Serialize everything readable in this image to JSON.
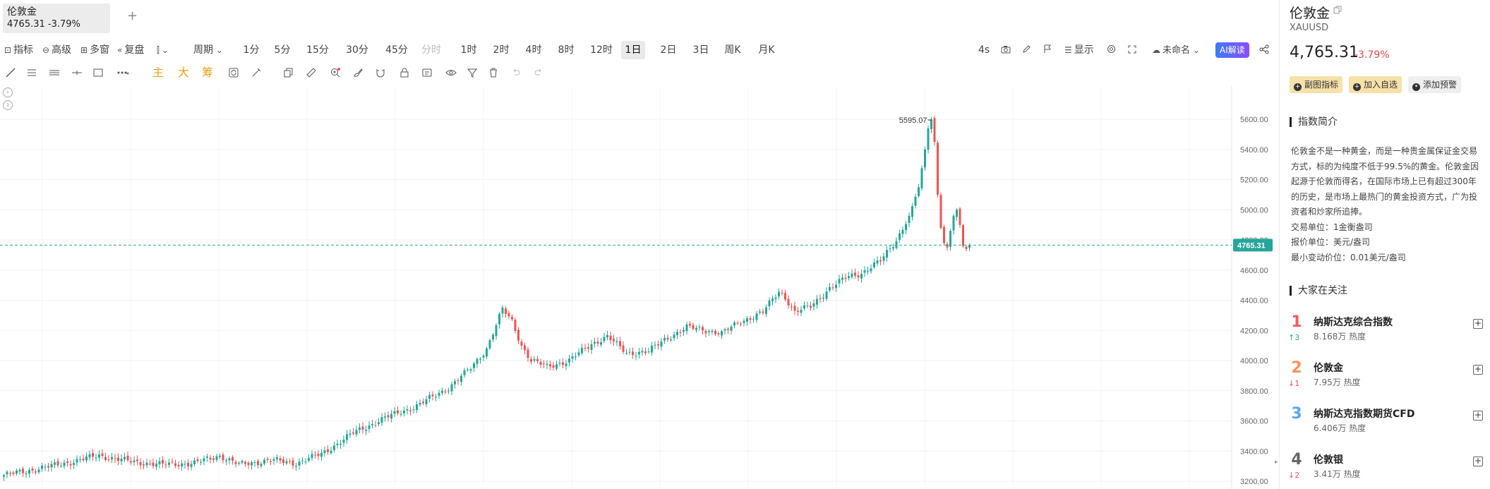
{
  "tab": {
    "name": "伦敦金",
    "quote": "4765.31 -3.79%",
    "add": "+"
  },
  "toolbar": {
    "indicators": "指标",
    "advanced": "高级",
    "multi_window": "多窗",
    "replay": "复盘",
    "chart_type_icon": "candlestick-type-icon",
    "period": "周期",
    "periods": [
      "1分",
      "5分",
      "15分",
      "30分",
      "45分",
      "分时",
      "1时",
      "2时",
      "4时",
      "8时",
      "12时",
      "1日",
      "2日",
      "3日",
      "周K",
      "月K"
    ],
    "active_period": "1日",
    "disabled_period": "分时",
    "refresh_interval": "4s",
    "display": "显示",
    "layout_name": "未命名",
    "ai_button": "AI解读"
  },
  "drawing_tools": {
    "main": "主",
    "big": "大",
    "chips": "筹"
  },
  "chart": {
    "last_price_label": "4765.31",
    "high_label": "5595.07",
    "y_ticks": [
      "5600.00",
      "5400.00",
      "5200.00",
      "5000.00",
      "4800.00",
      "4600.00",
      "4400.00",
      "4200.00",
      "4000.00",
      "3800.00",
      "3600.00",
      "3400.00",
      "3200.00"
    ],
    "up_color": "#26a69a",
    "down_color": "#ef5350",
    "last_line_color": "#26a69a"
  },
  "chart_data": {
    "type": "candlestick",
    "instrument": "XAUUSD",
    "interval": "1日",
    "ylim": [
      3150,
      5700
    ],
    "y_ticks": [
      3200,
      3400,
      3600,
      3800,
      4000,
      4200,
      4400,
      4600,
      4800,
      5000,
      5200,
      5400,
      5600
    ],
    "last_price": 4765.31,
    "high_marker": 5595.07,
    "trend_close_points": [
      [
        0,
        3240
      ],
      [
        15,
        3300
      ],
      [
        30,
        3370
      ],
      [
        40,
        3330
      ],
      [
        50,
        3310
      ],
      [
        60,
        3320
      ],
      [
        68,
        3370
      ],
      [
        74,
        3310
      ],
      [
        84,
        3340
      ],
      [
        92,
        3320
      ],
      [
        100,
        3380
      ],
      [
        110,
        3520
      ],
      [
        120,
        3620
      ],
      [
        130,
        3700
      ],
      [
        140,
        3820
      ],
      [
        147,
        3950
      ],
      [
        152,
        4080
      ],
      [
        157,
        4340
      ],
      [
        160,
        4260
      ],
      [
        163,
        4100
      ],
      [
        166,
        4000
      ],
      [
        171,
        3960
      ],
      [
        178,
        4000
      ],
      [
        185,
        4110
      ],
      [
        190,
        4160
      ],
      [
        196,
        4050
      ],
      [
        203,
        4060
      ],
      [
        208,
        4140
      ],
      [
        215,
        4220
      ],
      [
        222,
        4200
      ],
      [
        226,
        4180
      ],
      [
        232,
        4260
      ],
      [
        239,
        4320
      ],
      [
        244,
        4460
      ],
      [
        246,
        4420
      ],
      [
        249,
        4320
      ],
      [
        254,
        4360
      ],
      [
        260,
        4480
      ],
      [
        266,
        4560
      ],
      [
        270,
        4580
      ],
      [
        276,
        4660
      ],
      [
        281,
        4800
      ],
      [
        285,
        4960
      ],
      [
        288,
        5150
      ],
      [
        290,
        5400
      ],
      [
        291,
        5540
      ],
      [
        292,
        5600
      ],
      [
        293,
        5450
      ],
      [
        294,
        5100
      ],
      [
        295,
        4880
      ],
      [
        296,
        4780
      ],
      [
        297,
        4750
      ],
      [
        298,
        4860
      ],
      [
        299,
        4960
      ],
      [
        300,
        5000
      ],
      [
        301,
        4900
      ],
      [
        302,
        4760
      ],
      [
        303,
        4740
      ],
      [
        304,
        4765
      ]
    ]
  },
  "right_panel": {
    "name": "伦敦金",
    "code": "XAUUSD",
    "price": "4,765.31",
    "change": "-3.79%",
    "btn_sub_indicator": "副图指标",
    "btn_add_watchlist": "加入自选",
    "btn_add_alert": "添加预警",
    "intro_title": "指数简介",
    "intro_text": "伦敦金不是一种黄金，而是一种贵金属保证金交易方式，标的为纯度不低于99.5%的黄金。伦敦金因起源于伦敦而得名，在国际市场上已有超过300年的历史，是市场上最热门的黄金投资方式，广为投资者和炒家所追捧。",
    "trade_unit": "交易单位：1金衡盎司",
    "quote_unit": "报价单位：美元/盎司",
    "min_tick": "最小变动价位：0.01美元/盎司",
    "hot_title": "大家在关注",
    "hot_list": [
      {
        "rank": "1",
        "delta": "↑3",
        "name": "纳斯达克综合指数",
        "heat": "8.168万 热度",
        "rank_color": "#f45b5b",
        "delta_color": "#26a69a"
      },
      {
        "rank": "2",
        "delta": "↓1",
        "name": "伦敦金",
        "heat": "7.95万 热度",
        "rank_color": "#f7915a",
        "delta_color": "#ef5350"
      },
      {
        "rank": "3",
        "delta": "",
        "name": "纳斯达克指数期货CFD",
        "heat": "6.406万 热度",
        "rank_color": "#5aa6f4",
        "delta_color": "#999999"
      },
      {
        "rank": "4",
        "delta": "↓2",
        "name": "伦敦银",
        "heat": "3.41万 热度",
        "rank_color": "#666666",
        "delta_color": "#ef5350"
      }
    ]
  }
}
